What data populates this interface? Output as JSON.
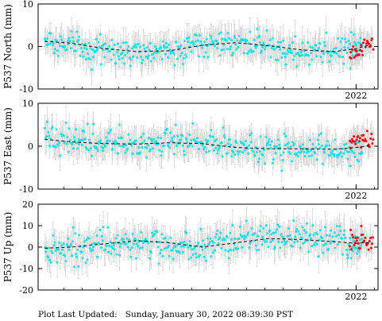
{
  "footer": {
    "label": "Plot Last Updated:",
    "value": "Sunday, January 30, 2022 08:39:30 PST"
  },
  "colors": {
    "points": "#00e5ee",
    "recent_points": "#ff0000",
    "error_bars": "#c8c8c8",
    "trend": "#000000",
    "frame": "#000000"
  },
  "chart_data": [
    {
      "type": "scatter",
      "title": "",
      "ylabel": "P537 North (mm)",
      "xlabel": "",
      "ylim": [
        -10,
        10
      ],
      "yticks": [
        -10,
        0,
        10
      ],
      "x_tick_labels": [
        "2022"
      ],
      "grid": false,
      "legend": "none",
      "series": [
        {
          "name": "",
          "color": "cyan",
          "x_range": [
            2020.58,
            2022.03
          ],
          "anchors_x": [
            2020.58,
            2020.65,
            2020.75,
            2020.85,
            2020.95,
            2021.05,
            2021.15,
            2021.25,
            2021.35,
            2021.45,
            2021.55,
            2021.65,
            2021.75,
            2021.85,
            2021.95,
            2022.03
          ],
          "anchors_y": [
            1.0,
            0.5,
            0.0,
            -0.8,
            -1.5,
            -1.4,
            -0.7,
            0.5,
            1.5,
            1.0,
            0.2,
            -0.5,
            -1.2,
            -1.0,
            -0.3,
            0.5
          ],
          "scatter_sd": 1.5,
          "error_bar_mm": 3.0
        },
        {
          "name": "",
          "color": "red",
          "x_range": [
            2021.97,
            2022.08
          ],
          "anchors_x": [
            2021.97,
            2022.01,
            2022.05,
            2022.08
          ],
          "anchors_y": [
            -1.5,
            -2.0,
            1.0,
            0.0
          ],
          "scatter_sd": 1.0,
          "error_bar_mm": 2.5
        }
      ],
      "trend": {
        "x": [
          2020.58,
          2020.7,
          2020.85,
          2021.0,
          2021.15,
          2021.3,
          2021.45,
          2021.6,
          2021.75,
          2021.9,
          2022.0,
          2022.07
        ],
        "y": [
          1.2,
          0.8,
          -0.5,
          -1.2,
          -1.0,
          0.3,
          0.9,
          0.2,
          -0.8,
          -1.2,
          -0.5,
          0.5
        ]
      }
    },
    {
      "type": "scatter",
      "title": "",
      "ylabel": "P537 East (mm)",
      "xlabel": "",
      "ylim": [
        -10,
        10
      ],
      "yticks": [
        -10,
        0,
        10
      ],
      "x_tick_labels": [
        "2022"
      ],
      "grid": false,
      "legend": "none",
      "series": [
        {
          "name": "",
          "color": "cyan",
          "x_range": [
            2020.58,
            2022.03
          ],
          "anchors_x": [
            2020.58,
            2020.7,
            2020.85,
            2021.0,
            2021.15,
            2021.3,
            2021.45,
            2021.6,
            2021.75,
            2021.9,
            2022.03
          ],
          "anchors_y": [
            2.5,
            1.5,
            0.8,
            0.5,
            0.8,
            1.0,
            0.0,
            -0.5,
            -1.0,
            -0.8,
            -1.0
          ],
          "scatter_sd": 1.6,
          "error_bar_mm": 3.0
        },
        {
          "name": "",
          "color": "red",
          "x_range": [
            2021.97,
            2022.08
          ],
          "anchors_x": [
            2021.97,
            2022.01,
            2022.05,
            2022.08
          ],
          "anchors_y": [
            0.5,
            1.0,
            1.5,
            2.0
          ],
          "scatter_sd": 1.0,
          "error_bar_mm": 2.5
        }
      ],
      "trend": {
        "x": [
          2020.58,
          2020.7,
          2020.85,
          2021.0,
          2021.15,
          2021.3,
          2021.45,
          2021.6,
          2021.75,
          2021.9,
          2022.0,
          2022.07
        ],
        "y": [
          1.6,
          1.0,
          0.6,
          0.5,
          0.8,
          0.6,
          -0.3,
          -0.6,
          -0.6,
          -0.7,
          -0.3,
          0.2
        ]
      }
    },
    {
      "type": "scatter",
      "title": "",
      "ylabel": "P537 Up (mm)",
      "xlabel": "",
      "ylim": [
        -20,
        20
      ],
      "yticks": [
        -20,
        -10,
        0,
        10,
        20
      ],
      "x_tick_labels": [
        "2022"
      ],
      "grid": false,
      "legend": "none",
      "series": [
        {
          "name": "",
          "color": "cyan",
          "x_range": [
            2020.58,
            2022.03
          ],
          "anchors_x": [
            2020.58,
            2020.7,
            2020.85,
            2021.0,
            2021.15,
            2021.3,
            2021.45,
            2021.6,
            2021.75,
            2021.9,
            2022.03
          ],
          "anchors_y": [
            -2.0,
            -1.0,
            1.0,
            3.0,
            1.0,
            -1.0,
            3.0,
            5.0,
            4.0,
            3.0,
            2.0
          ],
          "scatter_sd": 3.5,
          "error_bar_mm": 6.0
        },
        {
          "name": "",
          "color": "red",
          "x_range": [
            2021.97,
            2022.08
          ],
          "anchors_x": [
            2021.97,
            2022.01,
            2022.05,
            2022.08
          ],
          "anchors_y": [
            5.0,
            4.0,
            2.0,
            3.0
          ],
          "scatter_sd": 3.0,
          "error_bar_mm": 5.0
        }
      ],
      "trend": {
        "x": [
          2020.58,
          2020.7,
          2020.85,
          2021.0,
          2021.15,
          2021.3,
          2021.45,
          2021.6,
          2021.75,
          2021.9,
          2022.0,
          2022.07
        ],
        "y": [
          -0.5,
          0.0,
          1.5,
          3.0,
          2.0,
          0.0,
          2.0,
          4.0,
          3.5,
          2.5,
          1.8,
          2.2
        ]
      }
    }
  ]
}
